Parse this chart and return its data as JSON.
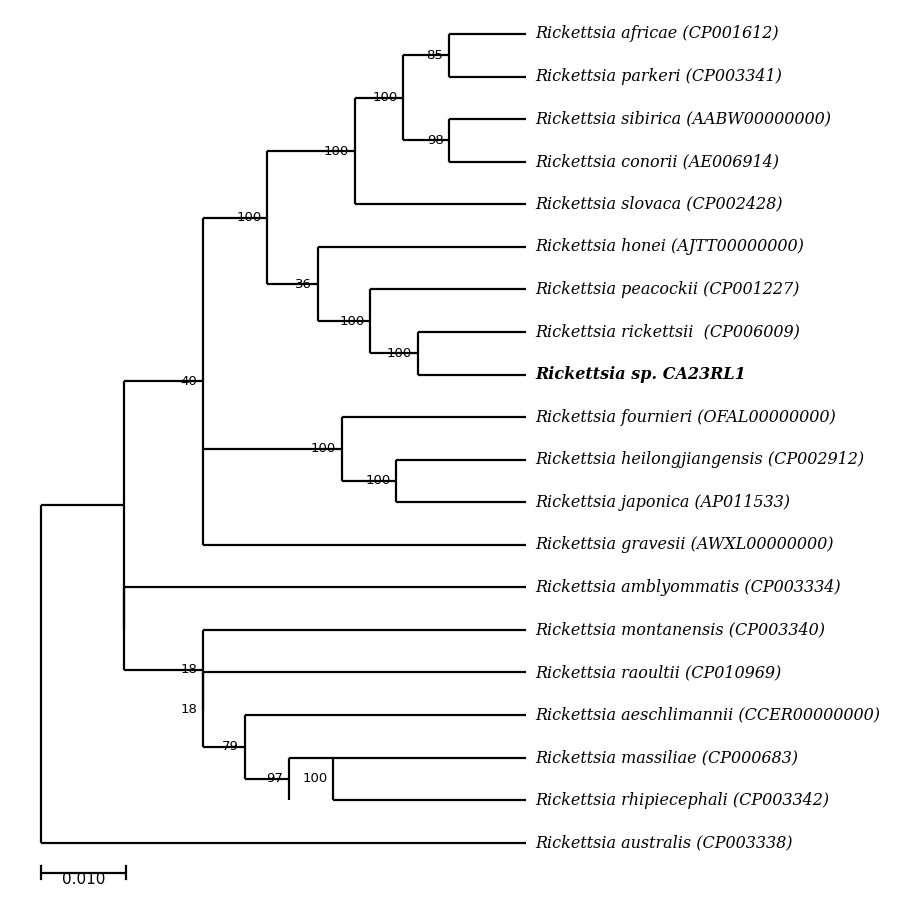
{
  "taxa": [
    {
      "name": "Rickettsia africae (CP001612)",
      "bold": false,
      "y": 1
    },
    {
      "name": "Rickettsia parkeri (CP003341)",
      "bold": false,
      "y": 2
    },
    {
      "name": "Rickettsia sibirica (AABW00000000)",
      "bold": false,
      "y": 3
    },
    {
      "name": "Rickettsia conorii (AE006914)",
      "bold": false,
      "y": 4
    },
    {
      "name": "Rickettsia slovaca (CP002428)",
      "bold": false,
      "y": 5
    },
    {
      "name": "Rickettsia honei (AJTT00000000)",
      "bold": false,
      "y": 6
    },
    {
      "name": "Rickettsia peacockii (CP001227)",
      "bold": false,
      "y": 7
    },
    {
      "name": "Rickettsia rickettsii  (CP006009)",
      "bold": false,
      "y": 8
    },
    {
      "name": "Rickettsia sp. CA23RL1",
      "bold": true,
      "y": 9
    },
    {
      "name": "Rickettsia fournieri (OFAL00000000)",
      "bold": false,
      "y": 10
    },
    {
      "name": "Rickettsia heilongjiangensis (CP002912)",
      "bold": false,
      "y": 11
    },
    {
      "name": "Rickettsia japonica (AP011533)",
      "bold": false,
      "y": 12
    },
    {
      "name": "Rickettsia gravesii (AWXL00000000)",
      "bold": false,
      "y": 13
    },
    {
      "name": "Rickettsia amblyommatis (CP003334)",
      "bold": false,
      "y": 14
    },
    {
      "name": "Rickettsia montanensis (CP003340)",
      "bold": false,
      "y": 15
    },
    {
      "name": "Rickettsia raoultii (CP010969)",
      "bold": false,
      "y": 16
    },
    {
      "name": "Rickettsia aeschlimannii (CCER00000000)",
      "bold": false,
      "y": 17
    },
    {
      "name": "Rickettsia massiliae (CP000683)",
      "bold": false,
      "y": 18
    },
    {
      "name": "Rickettsia rhipiecephali (CP003342)",
      "bold": false,
      "y": 19
    },
    {
      "name": "Rickettsia australis (CP003338)",
      "bold": false,
      "y": 20
    }
  ],
  "line_color": "#000000",
  "line_width": 1.6,
  "font_size": 11.5,
  "bs_font_size": 9.5,
  "scale_bar_label": "0.010",
  "background_color": "#ffffff",
  "xlim": [
    0.0,
    1.05
  ],
  "ylim": [
    0.3,
    21.0
  ]
}
